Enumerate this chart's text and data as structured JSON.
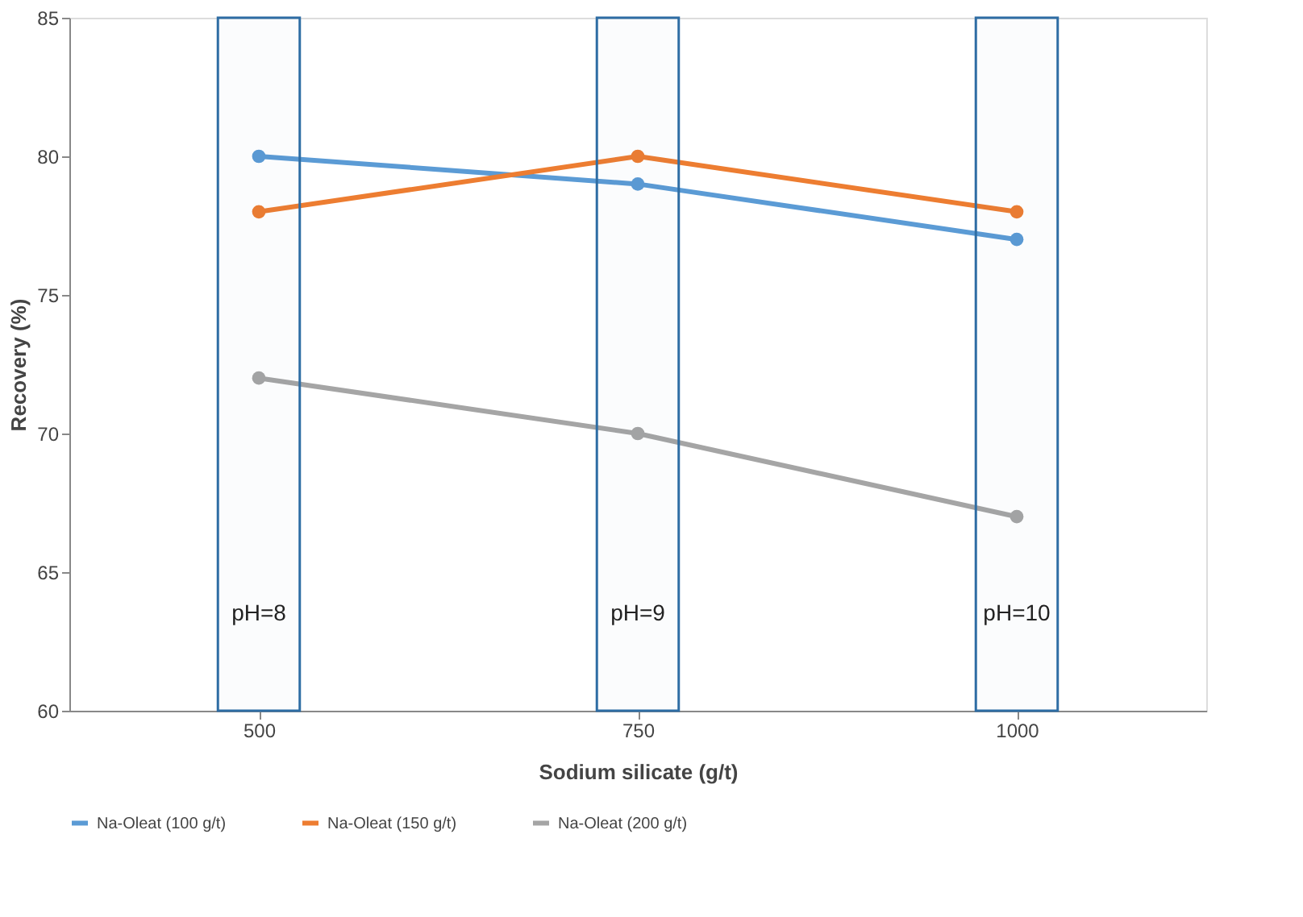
{
  "chart_data": {
    "type": "line",
    "xlabel": "Sodium silicate (g/t)",
    "ylabel": "Recovery (%)",
    "x": [
      500,
      750,
      1000
    ],
    "series": [
      {
        "name": "Na-Oleat (100 g/t)",
        "color": "#5b9bd5",
        "values": [
          80,
          79,
          77
        ]
      },
      {
        "name": "Na-Oleat (150 g/t)",
        "color": "#ed7d31",
        "values": [
          78,
          80,
          78
        ]
      },
      {
        "name": "Na-Oleat (200 g/t)",
        "color": "#a5a5a5",
        "values": [
          72,
          70,
          67
        ]
      }
    ],
    "xlim": [
      375,
      1125
    ],
    "xticks": [
      500,
      750,
      1000
    ],
    "ylim": [
      60,
      85
    ],
    "yticks": [
      60,
      65,
      70,
      75,
      80,
      85
    ],
    "grid": false,
    "legend": "bottom",
    "marker": "circle",
    "line_style": "solid",
    "bands": [
      {
        "axis": "x",
        "from": 473,
        "to": 527,
        "label": "pH=8",
        "color": "#2e6da4"
      },
      {
        "axis": "x",
        "from": 723,
        "to": 777,
        "label": "pH=9",
        "color": "#2e6da4"
      },
      {
        "axis": "x",
        "from": 973,
        "to": 1027,
        "label": "pH=10",
        "color": "#2e6da4"
      }
    ]
  }
}
